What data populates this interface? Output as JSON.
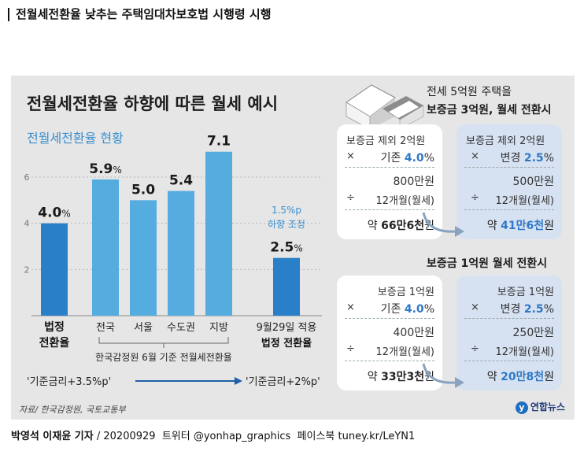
{
  "headline": "전월세전환율 낮추는 주택임대차보호법 시행령 시행",
  "main_title": "전월세전환율 하향에 따른 월세 예시",
  "sub_title": "전월세전환율 현황",
  "chart_data": {
    "type": "bar",
    "categories": [
      "법정 전환율",
      "전국",
      "서울",
      "수도권",
      "지방",
      "9월29일 적용 법정 전환율"
    ],
    "values": [
      4.0,
      5.9,
      5.0,
      5.4,
      7.1,
      2.5
    ],
    "value_labels": [
      "4.0",
      "5.9",
      "5.0",
      "5.4",
      "7.1",
      "2.5"
    ],
    "value_units": [
      "%",
      "%",
      "",
      "",
      "",
      "%"
    ],
    "yticks": [
      2,
      4,
      6
    ],
    "ylim": [
      0,
      7.5
    ],
    "colors": {
      "legal": "#2a7fc9",
      "regional": "#55acdf"
    },
    "legal_label_lines": [
      [
        "법정",
        "전환율"
      ],
      [
        "9월29일 적용",
        "법정 전환율"
      ]
    ],
    "group_note": "한국감정원 6월 기준 전월세전환율",
    "adjust_note": [
      "1.5%p",
      "하향 조정"
    ],
    "formula_old": "'기준금리+3.5%p'",
    "formula_new": "'기준금리+2%p'"
  },
  "source": "자료/ 한국감정원, 국토교통부",
  "logo": "연합뉴스",
  "example1": {
    "title1": "전세 5억원 주택을",
    "title2": "보증금 3억원, 월세 전환시",
    "old": {
      "line1": "보증금 제외 2억원",
      "rate_label": "기존",
      "rate": "4.0",
      "mid": "800",
      "mid_unit": "만원",
      "div": "12개월(월세)",
      "result_prefix": "약",
      "result": "66만6천",
      "result_unit": "원"
    },
    "new": {
      "line1": "보증금 제외 2억원",
      "rate_label": "변경",
      "rate": "2.5",
      "mid": "500",
      "mid_unit": "만원",
      "div": "12개월(월세)",
      "result_prefix": "약",
      "result": "41만6천",
      "result_unit": "원"
    }
  },
  "example2": {
    "title": "보증금 1억원 월세 전환시",
    "old": {
      "line1": "보증금 1억원",
      "rate_label": "기존",
      "rate": "4.0",
      "mid": "400",
      "mid_unit": "만원",
      "div": "12개월(월세)",
      "result_prefix": "약",
      "result": "33만3천",
      "result_unit": "원"
    },
    "new": {
      "line1": "보증금 1억원",
      "rate_label": "변경",
      "rate": "2.5",
      "mid": "250",
      "mid_unit": "만원",
      "div": "12개월(월세)",
      "result_prefix": "약",
      "result": "20만8천",
      "result_unit": "원"
    }
  },
  "symbols": {
    "times": "×",
    "divide": "÷",
    "percent": "%"
  },
  "footer": {
    "byline": "박영석 이재윤 기자",
    "date": "20200929",
    "twitter": "트위터 @yonhap_graphics",
    "facebook": "페이스북 tuney.kr/LeYN1"
  }
}
